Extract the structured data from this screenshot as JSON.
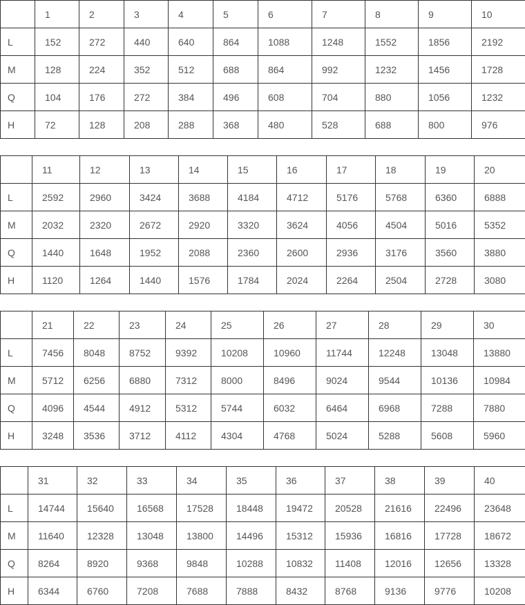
{
  "blocks": [
    {
      "versions": [
        "1",
        "2",
        "3",
        "4",
        "5",
        "6",
        "7",
        "8",
        "9",
        "10"
      ],
      "rows": [
        {
          "level": "L",
          "values": [
            "152",
            "272",
            "440",
            "640",
            "864",
            "1088",
            "1248",
            "1552",
            "1856",
            "2192"
          ]
        },
        {
          "level": "M",
          "values": [
            "128",
            "224",
            "352",
            "512",
            "688",
            "864",
            "992",
            "1232",
            "1456",
            "1728"
          ]
        },
        {
          "level": "Q",
          "values": [
            "104",
            "176",
            "272",
            "384",
            "496",
            "608",
            "704",
            "880",
            "1056",
            "1232"
          ]
        },
        {
          "level": "H",
          "values": [
            "72",
            "128",
            "208",
            "288",
            "368",
            "480",
            "528",
            "688",
            "800",
            "976"
          ]
        }
      ]
    },
    {
      "versions": [
        "11",
        "12",
        "13",
        "14",
        "15",
        "16",
        "17",
        "18",
        "19",
        "20"
      ],
      "rows": [
        {
          "level": "L",
          "values": [
            "2592",
            "2960",
            "3424",
            "3688",
            "4184",
            "4712",
            "5176",
            "5768",
            "6360",
            "6888"
          ]
        },
        {
          "level": "M",
          "values": [
            "2032",
            "2320",
            "2672",
            "2920",
            "3320",
            "3624",
            "4056",
            "4504",
            "5016",
            "5352"
          ]
        },
        {
          "level": "Q",
          "values": [
            "1440",
            "1648",
            "1952",
            "2088",
            "2360",
            "2600",
            "2936",
            "3176",
            "3560",
            "3880"
          ]
        },
        {
          "level": "H",
          "values": [
            "1120",
            "1264",
            "1440",
            "1576",
            "1784",
            "2024",
            "2264",
            "2504",
            "2728",
            "3080"
          ]
        }
      ]
    },
    {
      "versions": [
        "21",
        "22",
        "23",
        "24",
        "25",
        "26",
        "27",
        "28",
        "29",
        "30"
      ],
      "rows": [
        {
          "level": "L",
          "values": [
            "7456",
            "8048",
            "8752",
            "9392",
            "10208",
            "10960",
            "11744",
            "12248",
            "13048",
            "13880"
          ]
        },
        {
          "level": "M",
          "values": [
            "5712",
            "6256",
            "6880",
            "7312",
            "8000",
            "8496",
            "9024",
            "9544",
            "10136",
            "10984"
          ]
        },
        {
          "level": "Q",
          "values": [
            "4096",
            "4544",
            "4912",
            "5312",
            "5744",
            "6032",
            "6464",
            "6968",
            "7288",
            "7880"
          ]
        },
        {
          "level": "H",
          "values": [
            "3248",
            "3536",
            "3712",
            "4112",
            "4304",
            "4768",
            "5024",
            "5288",
            "5608",
            "5960"
          ]
        }
      ]
    },
    {
      "versions": [
        "31",
        "32",
        "33",
        "34",
        "35",
        "36",
        "37",
        "38",
        "39",
        "40"
      ],
      "rows": [
        {
          "level": "L",
          "values": [
            "14744",
            "15640",
            "16568",
            "17528",
            "18448",
            "19472",
            "20528",
            "21616",
            "22496",
            "23648"
          ]
        },
        {
          "level": "M",
          "values": [
            "11640",
            "12328",
            "13048",
            "13800",
            "14496",
            "15312",
            "15936",
            "16816",
            "17728",
            "18672"
          ]
        },
        {
          "level": "Q",
          "values": [
            "8264",
            "8920",
            "9368",
            "9848",
            "10288",
            "10832",
            "11408",
            "12016",
            "12656",
            "13328"
          ]
        },
        {
          "level": "H",
          "values": [
            "6344",
            "6760",
            "7208",
            "7688",
            "7888",
            "8432",
            "8768",
            "9136",
            "9776",
            "10208"
          ]
        }
      ]
    }
  ]
}
